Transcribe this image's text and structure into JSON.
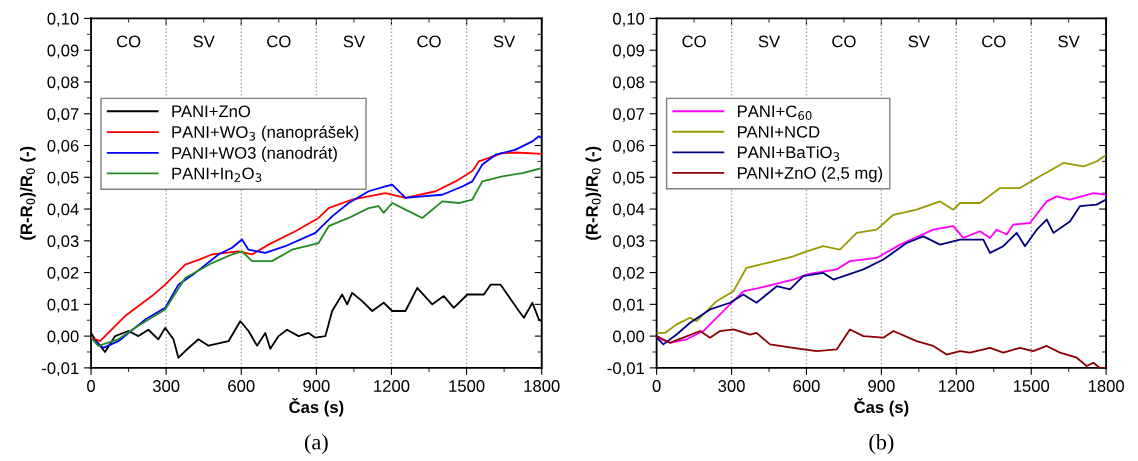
{
  "chart_data": [
    {
      "type": "line",
      "xlabel": "Čas (s)",
      "ylabel": "(R-R$_{0}$)/R$_{0}$ (-)",
      "xlim": [
        0,
        1800
      ],
      "ylim": [
        -0.01,
        0.1
      ],
      "xticks": [
        0,
        300,
        600,
        900,
        1200,
        1500,
        1800
      ],
      "yticks": [
        {
          "value": -0.01,
          "label": "-0,01"
        },
        {
          "value": 0,
          "label": "0,00"
        },
        {
          "value": 0.01,
          "label": "0,01"
        },
        {
          "value": 0.02,
          "label": "0,02"
        },
        {
          "value": 0.03,
          "label": "0,03"
        },
        {
          "value": 0.04,
          "label": "0,04"
        },
        {
          "value": 0.05,
          "label": "0,05"
        },
        {
          "value": 0.06,
          "label": "0,06"
        },
        {
          "value": 0.07,
          "label": "0,07"
        },
        {
          "value": 0.08,
          "label": "0,08"
        },
        {
          "value": 0.09,
          "label": "0,09"
        },
        {
          "value": 0.1,
          "label": "0,10"
        }
      ],
      "legend": "upper left",
      "grid": false,
      "line_style": "solid",
      "marker": "none",
      "ref_lines": [
        {
          "axis": "x",
          "value": 300,
          "color": "#a0a0a0",
          "line_style": "dotted"
        },
        {
          "axis": "x",
          "value": 600,
          "color": "#a0a0a0",
          "line_style": "dotted"
        },
        {
          "axis": "x",
          "value": 900,
          "color": "#a0a0a0",
          "line_style": "dotted"
        },
        {
          "axis": "x",
          "value": 1200,
          "color": "#a0a0a0",
          "line_style": "dotted"
        },
        {
          "axis": "x",
          "value": 1500,
          "color": "#a0a0a0",
          "line_style": "dotted"
        }
      ],
      "annotations": [
        "CO",
        "SV",
        "CO",
        "SV",
        "CO",
        "SV",
        "(a)"
      ],
      "series": [
        {
          "name": "PANI+ZnO",
          "color": "#000000",
          "x": [
            0,
            16,
            56,
            96,
            149,
            189,
            229,
            269,
            296,
            329,
            349,
            376,
            429,
            469,
            549,
            596,
            629,
            663,
            696,
            716,
            749,
            783,
            829,
            869,
            896,
            936,
            963,
            1003,
            1023,
            1043,
            1083,
            1123,
            1169,
            1203,
            1256,
            1303,
            1363,
            1409,
            1449,
            1503,
            1569,
            1596,
            1636,
            1663,
            1709,
            1729,
            1763,
            1789,
            1800
          ],
          "values": [
            0.001,
            -0.001,
            -0.005,
            0,
            0.0016,
            0,
            0.002,
            -0.001,
            0.0026,
            -0.001,
            -0.0068,
            -0.0047,
            -0.001,
            -0.003,
            -0.0016,
            0.0047,
            0.0016,
            -0.003,
            0.001,
            -0.004,
            0,
            0.002,
            0,
            0.001,
            -0.0005,
            0,
            0.0079,
            0.0131,
            0.01,
            0.0136,
            0.011,
            0.0079,
            0.0105,
            0.0079,
            0.0079,
            0.0152,
            0.01,
            0.0126,
            0.0089,
            0.0131,
            0.0131,
            0.0162,
            0.0162,
            0.0131,
            0.0079,
            0.0058,
            0.0105,
            0.0052,
            0.0047
          ]
        },
        {
          "name": "PANI+WO$_{3}$ (nanoprášek)",
          "color": "#ff0000",
          "x": [
            0,
            36,
            136,
            243,
            296,
            376,
            429,
            483,
            589,
            643,
            709,
            816,
            909,
            949,
            1043,
            1109,
            1176,
            1256,
            1376,
            1456,
            1523,
            1549,
            1643,
            1696,
            1800
          ],
          "values": [
            -0.0005,
            -0.0016,
            0.0063,
            0.0126,
            0.0162,
            0.0225,
            0.024,
            0.0257,
            0.0267,
            0.0257,
            0.0288,
            0.033,
            0.0372,
            0.0403,
            0.043,
            0.044,
            0.045,
            0.0435,
            0.0456,
            0.0487,
            0.052,
            0.055,
            0.0576,
            0.0578,
            0.0574
          ]
        },
        {
          "name": "PANI+WO3 (nanodrát)",
          "color": "#0000ff",
          "x": [
            0,
            49,
            109,
            216,
            296,
            349,
            416,
            509,
            563,
            603,
            629,
            696,
            776,
            896,
            963,
            1029,
            1109,
            1176,
            1203,
            1256,
            1323,
            1403,
            1483,
            1523,
            1563,
            1616,
            1696,
            1763,
            1789,
            1800
          ],
          "values": [
            -0.0005,
            -0.0037,
            -0.0016,
            0.0052,
            0.0089,
            0.0162,
            0.0199,
            0.0257,
            0.0278,
            0.0304,
            0.0272,
            0.0262,
            0.0283,
            0.0325,
            0.0377,
            0.0419,
            0.0456,
            0.0471,
            0.0477,
            0.0435,
            0.044,
            0.0445,
            0.0471,
            0.0487,
            0.054,
            0.0571,
            0.0587,
            0.0613,
            0.0629,
            0.0623
          ]
        },
        {
          "name": "PANI+In$_{2}$O$_{3}$",
          "color": "#228b22",
          "x": [
            0,
            29,
            109,
            176,
            296,
            376,
            483,
            563,
            603,
            643,
            723,
            803,
            909,
            949,
            1029,
            1109,
            1149,
            1169,
            1203,
            1256,
            1323,
            1403,
            1469,
            1523,
            1563,
            1643,
            1723,
            1800
          ],
          "values": [
            -0.0005,
            -0.0031,
            -0.001,
            0.0026,
            0.0084,
            0.0183,
            0.023,
            0.0257,
            0.0267,
            0.0236,
            0.0236,
            0.0272,
            0.0293,
            0.0346,
            0.0372,
            0.0403,
            0.0409,
            0.0388,
            0.0419,
            0.0398,
            0.0372,
            0.0424,
            0.0419,
            0.043,
            0.0487,
            0.0503,
            0.0513,
            0.0529
          ]
        }
      ]
    },
    {
      "type": "line",
      "xlabel": "Čas (s)",
      "ylabel": "(R-R$_{0}$)/R$_{0}$ (-)",
      "xlim": [
        0,
        1800
      ],
      "ylim": [
        -0.01,
        0.1
      ],
      "xticks": [
        0,
        300,
        600,
        900,
        1200,
        1500,
        1800
      ],
      "yticks": [
        {
          "value": -0.01,
          "label": "-0,01"
        },
        {
          "value": 0,
          "label": "0,00"
        },
        {
          "value": 0.01,
          "label": "0,01"
        },
        {
          "value": 0.02,
          "label": "0,02"
        },
        {
          "value": 0.03,
          "label": "0,03"
        },
        {
          "value": 0.04,
          "label": "0,04"
        },
        {
          "value": 0.05,
          "label": "0,05"
        },
        {
          "value": 0.06,
          "label": "0,06"
        },
        {
          "value": 0.07,
          "label": "0,07"
        },
        {
          "value": 0.08,
          "label": "0,08"
        },
        {
          "value": 0.09,
          "label": "0,09"
        },
        {
          "value": 0.1,
          "label": "0,10"
        }
      ],
      "legend": "upper left",
      "grid": false,
      "line_style": "solid",
      "marker": "none",
      "ref_lines": [
        {
          "axis": "x",
          "value": 300,
          "color": "#a0a0a0",
          "line_style": "dotted"
        },
        {
          "axis": "x",
          "value": 600,
          "color": "#a0a0a0",
          "line_style": "dotted"
        },
        {
          "axis": "x",
          "value": 900,
          "color": "#a0a0a0",
          "line_style": "dotted"
        },
        {
          "axis": "x",
          "value": 1200,
          "color": "#a0a0a0",
          "line_style": "dotted"
        },
        {
          "axis": "x",
          "value": 1500,
          "color": "#a0a0a0",
          "line_style": "dotted"
        }
      ],
      "annotations": [
        "CO",
        "SV",
        "CO",
        "SV",
        "CO",
        "SV",
        "(b)"
      ],
      "series": [
        {
          "name": "PANI+C$_{60}$",
          "color": "#ff00ff",
          "x": [
            0,
            53,
            120,
            187,
            294,
            347,
            441,
            547,
            601,
            721,
            774,
            881,
            975,
            1108,
            1188,
            1228,
            1295,
            1335,
            1362,
            1402,
            1428,
            1495,
            1562,
            1602,
            1655,
            1749,
            1800
          ],
          "values": [
            -0.0005,
            -0.0021,
            -0.001,
            0.0016,
            0.01,
            0.0141,
            0.0157,
            0.0178,
            0.0194,
            0.021,
            0.0236,
            0.0246,
            0.0288,
            0.0335,
            0.0346,
            0.0309,
            0.033,
            0.0309,
            0.0335,
            0.032,
            0.0351,
            0.0356,
            0.0424,
            0.044,
            0.043,
            0.045,
            0.0445
          ]
        },
        {
          "name": "PANI+NCD",
          "color": "#999900",
          "x": [
            0,
            33,
            80,
            134,
            160,
            240,
            307,
            360,
            441,
            547,
            601,
            667,
            734,
            801,
            881,
            948,
            1041,
            1135,
            1188,
            1215,
            1295,
            1375,
            1455,
            1535,
            1629,
            1709,
            1762,
            1800
          ],
          "values": [
            0.001,
            0.001,
            0.0037,
            0.0058,
            0.0047,
            0.011,
            0.0141,
            0.0215,
            0.023,
            0.0251,
            0.0267,
            0.0283,
            0.0272,
            0.0325,
            0.0335,
            0.0382,
            0.0398,
            0.0424,
            0.0398,
            0.0419,
            0.0419,
            0.0466,
            0.0466,
            0.0503,
            0.0545,
            0.0534,
            0.055,
            0.0571
          ]
        },
        {
          "name": "PANI+BaTiO$_{3}$",
          "color": "#000080",
          "x": [
            0,
            27,
            80,
            134,
            214,
            294,
            347,
            400,
            481,
            534,
            587,
            667,
            708,
            828,
            908,
            1001,
            1068,
            1135,
            1215,
            1308,
            1335,
            1388,
            1442,
            1475,
            1522,
            1562,
            1589,
            1655,
            1695,
            1762,
            1800
          ],
          "values": [
            -0.0005,
            -0.0026,
            0.0005,
            0.0042,
            0.0084,
            0.0105,
            0.0131,
            0.0105,
            0.0157,
            0.0147,
            0.0189,
            0.0199,
            0.0178,
            0.021,
            0.0241,
            0.0293,
            0.0314,
            0.0288,
            0.0304,
            0.0304,
            0.0262,
            0.0283,
            0.0325,
            0.0283,
            0.0335,
            0.0367,
            0.0325,
            0.0361,
            0.0409,
            0.0414,
            0.043
          ]
        },
        {
          "name": "PANI+ZnO (2,5 mg)",
          "color": "#8b0000",
          "x": [
            0,
            53,
            107,
            174,
            214,
            254,
            307,
            374,
            400,
            454,
            547,
            641,
            721,
            774,
            828,
            908,
            948,
            1041,
            1108,
            1161,
            1215,
            1255,
            1335,
            1388,
            1455,
            1508,
            1562,
            1615,
            1682,
            1722,
            1749,
            1775,
            1800
          ],
          "values": [
            0,
            -0.0021,
            -0.0005,
            0.0016,
            -0.0005,
            0.0016,
            0.0021,
            0.0005,
            0.001,
            -0.0026,
            -0.0037,
            -0.0047,
            -0.0042,
            0.0021,
            0,
            -0.0005,
            0.0016,
            -0.0016,
            -0.0031,
            -0.0058,
            -0.0047,
            -0.0052,
            -0.0037,
            -0.0052,
            -0.0037,
            -0.0047,
            -0.0031,
            -0.0052,
            -0.0068,
            -0.0094,
            -0.0084,
            -0.01,
            -0.01
          ]
        }
      ]
    }
  ]
}
